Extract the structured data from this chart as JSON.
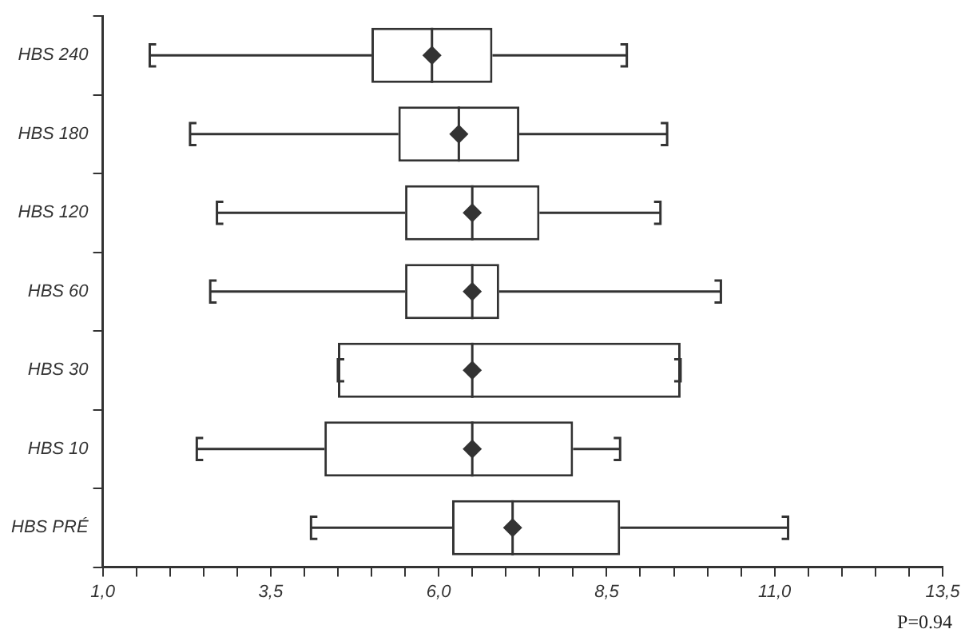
{
  "chart_data": {
    "type": "box",
    "orientation": "horizontal",
    "categories": [
      "HBS 240",
      "HBS 180",
      "HBS 120",
      "HBS 60",
      "HBS 30",
      "HBS 10",
      "HBS PRÉ"
    ],
    "color": "#333333",
    "marker": "diamond",
    "grid": false,
    "legend": false,
    "boxes": [
      {
        "low": 1.7,
        "q1": 5.0,
        "median": 5.9,
        "q3": 6.8,
        "high": 8.8,
        "mean": 5.9
      },
      {
        "low": 2.3,
        "q1": 5.4,
        "median": 6.3,
        "q3": 7.2,
        "high": 9.4,
        "mean": 6.3
      },
      {
        "low": 2.7,
        "q1": 5.5,
        "median": 6.5,
        "q3": 7.5,
        "high": 9.3,
        "mean": 6.5
      },
      {
        "low": 2.6,
        "q1": 5.5,
        "median": 6.5,
        "q3": 6.9,
        "high": 10.2,
        "mean": 6.5
      },
      {
        "low": 4.5,
        "q1": 4.5,
        "median": 6.5,
        "q3": 9.6,
        "high": 9.6,
        "mean": 6.5
      },
      {
        "low": 2.4,
        "q1": 4.3,
        "median": 6.5,
        "q3": 8.0,
        "high": 8.7,
        "mean": 6.5
      },
      {
        "low": 4.1,
        "q1": 6.2,
        "median": 7.1,
        "q3": 8.7,
        "high": 11.2,
        "mean": 7.1
      }
    ],
    "xlim": [
      1.0,
      13.5
    ],
    "xticks": [
      {
        "value": 1.0,
        "label": "1,0"
      },
      {
        "value": 1.5,
        "label": null
      },
      {
        "value": 2.0,
        "label": null
      },
      {
        "value": 2.5,
        "label": null
      },
      {
        "value": 3.0,
        "label": null
      },
      {
        "value": 3.5,
        "label": "3,5"
      },
      {
        "value": 4.0,
        "label": null
      },
      {
        "value": 4.5,
        "label": null
      },
      {
        "value": 5.0,
        "label": null
      },
      {
        "value": 5.5,
        "label": null
      },
      {
        "value": 6.0,
        "label": "6,0"
      },
      {
        "value": 6.5,
        "label": null
      },
      {
        "value": 7.0,
        "label": null
      },
      {
        "value": 7.5,
        "label": null
      },
      {
        "value": 8.0,
        "label": null
      },
      {
        "value": 8.5,
        "label": "8,5"
      },
      {
        "value": 9.0,
        "label": null
      },
      {
        "value": 9.5,
        "label": null
      },
      {
        "value": 10.0,
        "label": null
      },
      {
        "value": 10.5,
        "label": null
      },
      {
        "value": 11.0,
        "label": "11,0"
      },
      {
        "value": 11.5,
        "label": null
      },
      {
        "value": 12.0,
        "label": null
      },
      {
        "value": 12.5,
        "label": null
      },
      {
        "value": 13.0,
        "label": null
      },
      {
        "value": 13.5,
        "label": "13,5"
      }
    ],
    "annotations": [
      "P=0.94"
    ]
  }
}
